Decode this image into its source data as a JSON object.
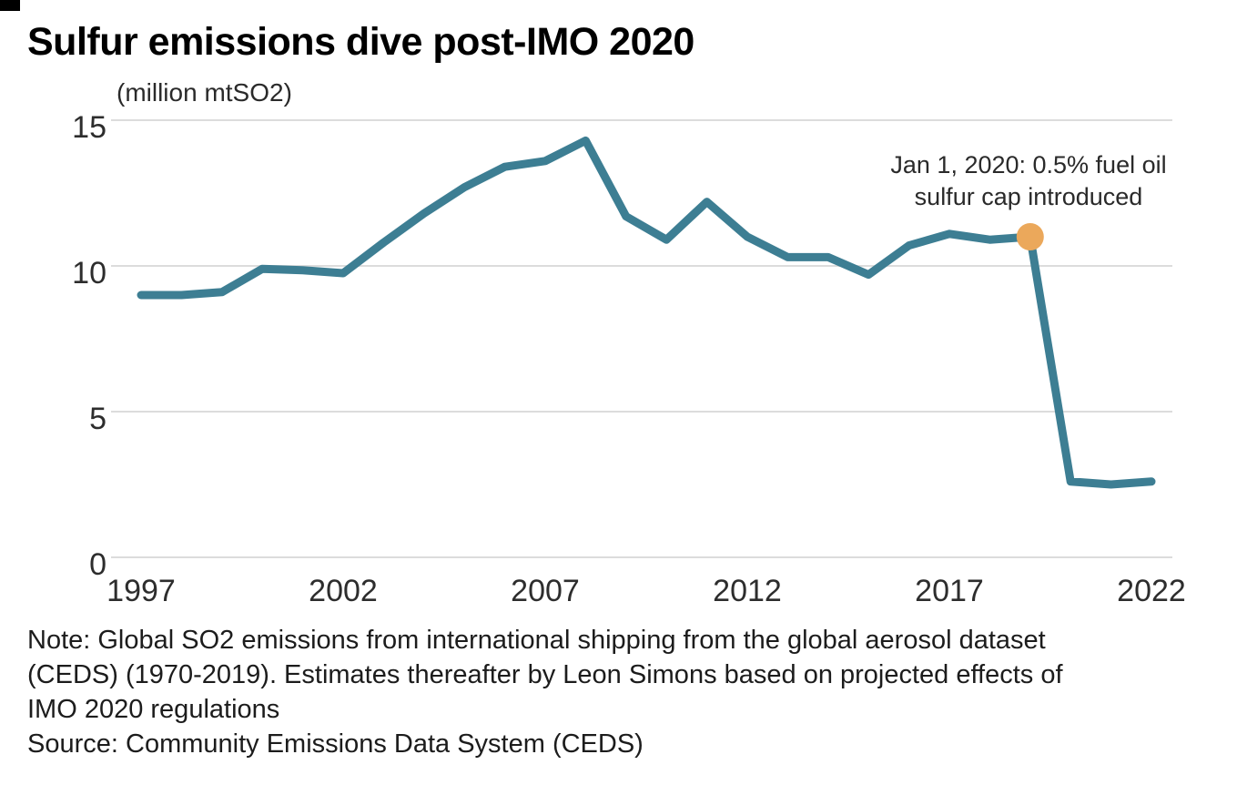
{
  "chart_data": {
    "type": "line",
    "title": "Sulfur emissions dive post-IMO 2020",
    "unit_label": "(million mtSO2)",
    "series_name": "Global SO2 emissions from international shipping",
    "x": [
      1997,
      1998,
      1999,
      2000,
      2001,
      2002,
      2003,
      2004,
      2005,
      2006,
      2007,
      2008,
      2009,
      2010,
      2011,
      2012,
      2013,
      2014,
      2015,
      2016,
      2017,
      2018,
      2019,
      2020,
      2021,
      2022
    ],
    "values": [
      9.0,
      9.0,
      9.1,
      9.9,
      9.85,
      9.75,
      10.8,
      11.8,
      12.7,
      13.4,
      13.6,
      14.3,
      11.7,
      10.9,
      12.2,
      11.0,
      10.3,
      10.3,
      9.7,
      10.7,
      11.1,
      10.9,
      11.0,
      2.6,
      2.5,
      2.6
    ],
    "xticks": [
      1997,
      2002,
      2007,
      2012,
      2017,
      2022
    ],
    "yticks": [
      15,
      10,
      5,
      0
    ],
    "ylim": [
      0,
      15
    ],
    "xlim": [
      1997,
      2022
    ],
    "grid": "horizontal",
    "legend": "none",
    "line_color": "#3d7e93",
    "gridline_color": "#dcdcdc",
    "marker": {
      "year": 2019,
      "value": 11.0,
      "color": "#eba85b",
      "label_line1": "Jan 1, 2020: 0.5% fuel oil",
      "label_line2": "sulfur cap introduced"
    }
  },
  "footer": {
    "note_lines": [
      "Note: Global SO2 emissions from international shipping from the global aerosol dataset",
      "(CEDS) (1970-2019). Estimates thereafter by Leon Simons based on projected effects of",
      "IMO 2020 regulations"
    ],
    "source": "Source: Community Emissions Data System (CEDS)"
  }
}
